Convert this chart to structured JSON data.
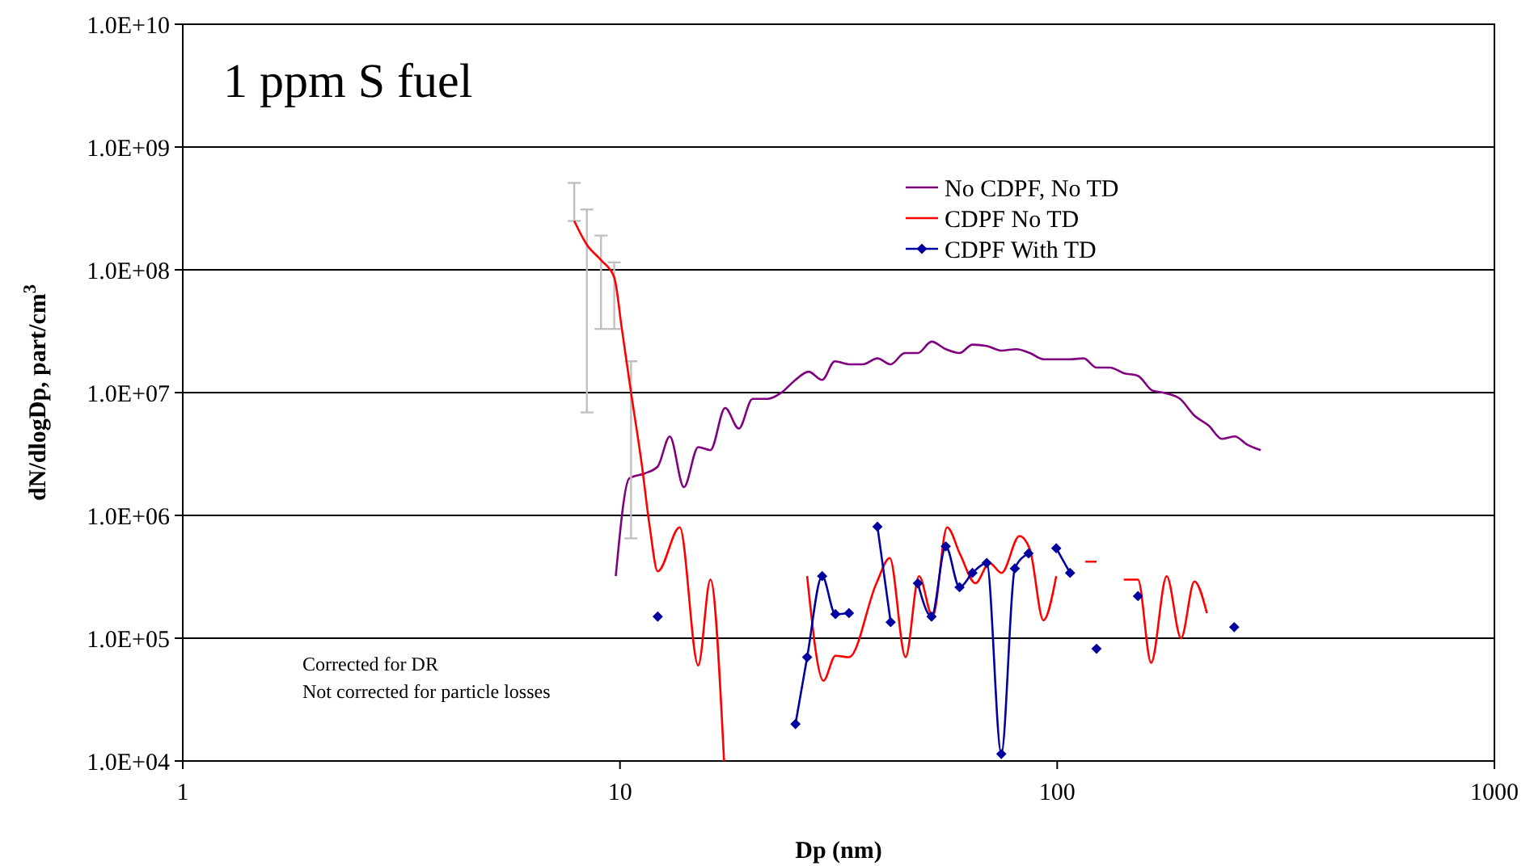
{
  "chart_data": {
    "type": "line",
    "title": "1 ppm S fuel",
    "xlabel": "Dp (nm)",
    "ylabel": "dN/dlogDp, part/cm$^{3}$",
    "log": "xy",
    "grid": "y",
    "legend": "top right",
    "xlim": [
      1,
      1000
    ],
    "xticks": [
      1,
      10,
      100,
      1000
    ],
    "ylim": [
      10000,
      10000000000
    ],
    "yticks": [
      {
        "value": 10000,
        "label": "1.0E+04"
      },
      {
        "value": 100000,
        "label": "1.0E+05"
      },
      {
        "value": 1000000,
        "label": "1.0E+06"
      },
      {
        "value": 10000000,
        "label": "1.0E+07"
      },
      {
        "value": 100000000,
        "label": "1.0E+08"
      },
      {
        "value": 1000000000,
        "label": "1.0E+09"
      },
      {
        "value": 10000000000,
        "label": "1.0E+10"
      }
    ],
    "annotations": [
      "Corrected for DR",
      "Not corrected for particle losses"
    ],
    "series": [
      {
        "name": "No CDPF, No TD",
        "color": "#800080",
        "marker": "none",
        "x": [
          9.78,
          10.5,
          11.4,
          12.2,
          13.0,
          14.0,
          15.1,
          16.1,
          17.4,
          18.7,
          20.1,
          21.8,
          23.4,
          25.2,
          27.0,
          29.0,
          31.0,
          33.4,
          35.9,
          38.8,
          41.6,
          44.8,
          48.0,
          51.6,
          55.6,
          59.8,
          64,
          69,
          74.6,
          80.7,
          86.6,
          93,
          99.6,
          107,
          115,
          123,
          132,
          142,
          153,
          165,
          177,
          191,
          206,
          222,
          238,
          255,
          271,
          292
        ],
        "values": [
          320000,
          2000000,
          2200000,
          2500000,
          4400000,
          1700000,
          3600000,
          3400000,
          7500000,
          5100000,
          8900000,
          8900000,
          10000000,
          12700000,
          14800000,
          12700000,
          18000000,
          17000000,
          17000000,
          19000000,
          17000000,
          21000000,
          21000000,
          26000000,
          22600000,
          21000000,
          24600000,
          24000000,
          22000000,
          22600000,
          21000000,
          18700000,
          18700000,
          18700000,
          19000000,
          16000000,
          16000000,
          14400000,
          13700000,
          10400000,
          9900000,
          8900000,
          6500000,
          5400000,
          4200000,
          4400000,
          3800000,
          3400000
        ]
      },
      {
        "name": "CDPF No TD",
        "color": "#ff0000",
        "marker": "none",
        "x": [
          7.86,
          8.4,
          9.05,
          9.7,
          10.1,
          10.6,
          11.2,
          11.7,
          12.2,
          13.7,
          15.1,
          16.1,
          17.3,
          22,
          26.8,
          29.2,
          31.1,
          33.4,
          38.6,
          41.4,
          45,
          48.3,
          51.9,
          56,
          60,
          65,
          70,
          74.6,
          82,
          86.6,
          93,
          99.5,
          110,
          116,
          123,
          135,
          142,
          153,
          164,
          178,
          192,
          206,
          220
        ],
        "values": [
          250000000,
          160000000,
          120000000,
          87000000,
          33000000,
          10000000,
          2700000,
          800000,
          350000,
          800000,
          60000,
          300000,
          10000,
          null,
          320000,
          45000,
          72000,
          70000,
          280000,
          450000,
          70000,
          320000,
          150000,
          800000,
          480000,
          280000,
          410000,
          340000,
          680000,
          530000,
          140000,
          320000,
          null,
          420000,
          420000,
          null,
          300000,
          300000,
          63000,
          320000,
          100000,
          290000,
          160000
        ],
        "errors": [
          [
            250000000,
            510000000
          ],
          [
            6900000,
            310000000
          ],
          [
            33000000,
            190000000
          ],
          [
            33000000,
            115000000
          ],
          null,
          [
            650000,
            18000000
          ],
          null,
          null,
          null,
          null,
          null,
          null,
          null,
          null,
          null,
          null,
          null,
          null,
          null,
          null,
          null,
          null,
          null,
          null,
          null,
          null,
          null,
          null,
          null,
          null,
          null,
          null,
          null,
          null,
          null,
          null,
          null,
          null,
          null,
          null,
          null,
          null,
          null
        ]
      },
      {
        "name": "CDPF With TD",
        "color": "#0000a0",
        "marker": "diamond",
        "x": [
          12.2,
          20,
          25.2,
          26.8,
          29,
          31.1,
          33.4,
          36,
          38.8,
          41.6,
          45,
          48,
          51.6,
          55.6,
          59.8,
          64,
          69,
          74.5,
          80,
          86,
          93,
          99.5,
          107,
          115,
          123,
          140,
          153,
          200,
          254
        ],
        "values": [
          150000,
          null,
          20000,
          70000,
          320000,
          157000,
          160000,
          null,
          810000,
          135000,
          null,
          280000,
          150000,
          560000,
          260000,
          340000,
          410000,
          11400,
          370000,
          490000,
          null,
          540000,
          340000,
          null,
          82000,
          null,
          220000,
          null,
          123000
        ]
      }
    ]
  }
}
